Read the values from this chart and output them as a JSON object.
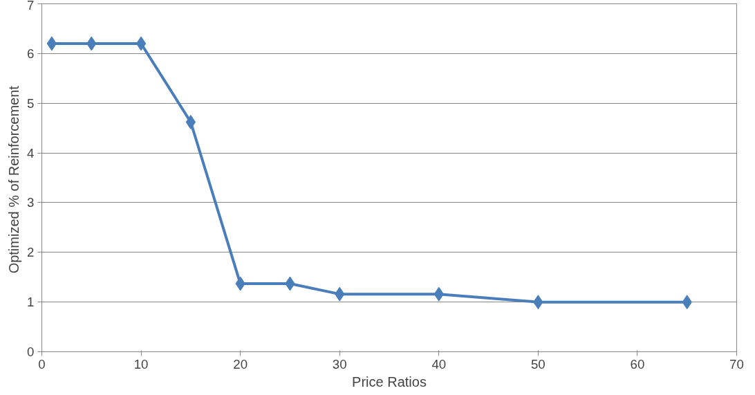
{
  "chart_data": {
    "type": "line",
    "xlabel": "Price Ratios",
    "ylabel": "Optimized  % of Reinforcement",
    "x": [
      1,
      5,
      10,
      15,
      20,
      25,
      30,
      40,
      50,
      65
    ],
    "series": [
      {
        "color": "#4a7ebb",
        "values": [
          6.2,
          6.2,
          6.2,
          4.62,
          1.37,
          1.37,
          1.16,
          1.16,
          1.0,
          1.0
        ]
      }
    ],
    "xlim": [
      0,
      70
    ],
    "xticks": [
      0,
      10,
      20,
      30,
      40,
      50,
      60,
      70
    ],
    "ylim": [
      0,
      7
    ],
    "yticks": [
      0,
      1,
      2,
      3,
      4,
      5,
      6,
      7
    ],
    "grid": "y",
    "marker": "diamond",
    "line_style": "solid"
  }
}
